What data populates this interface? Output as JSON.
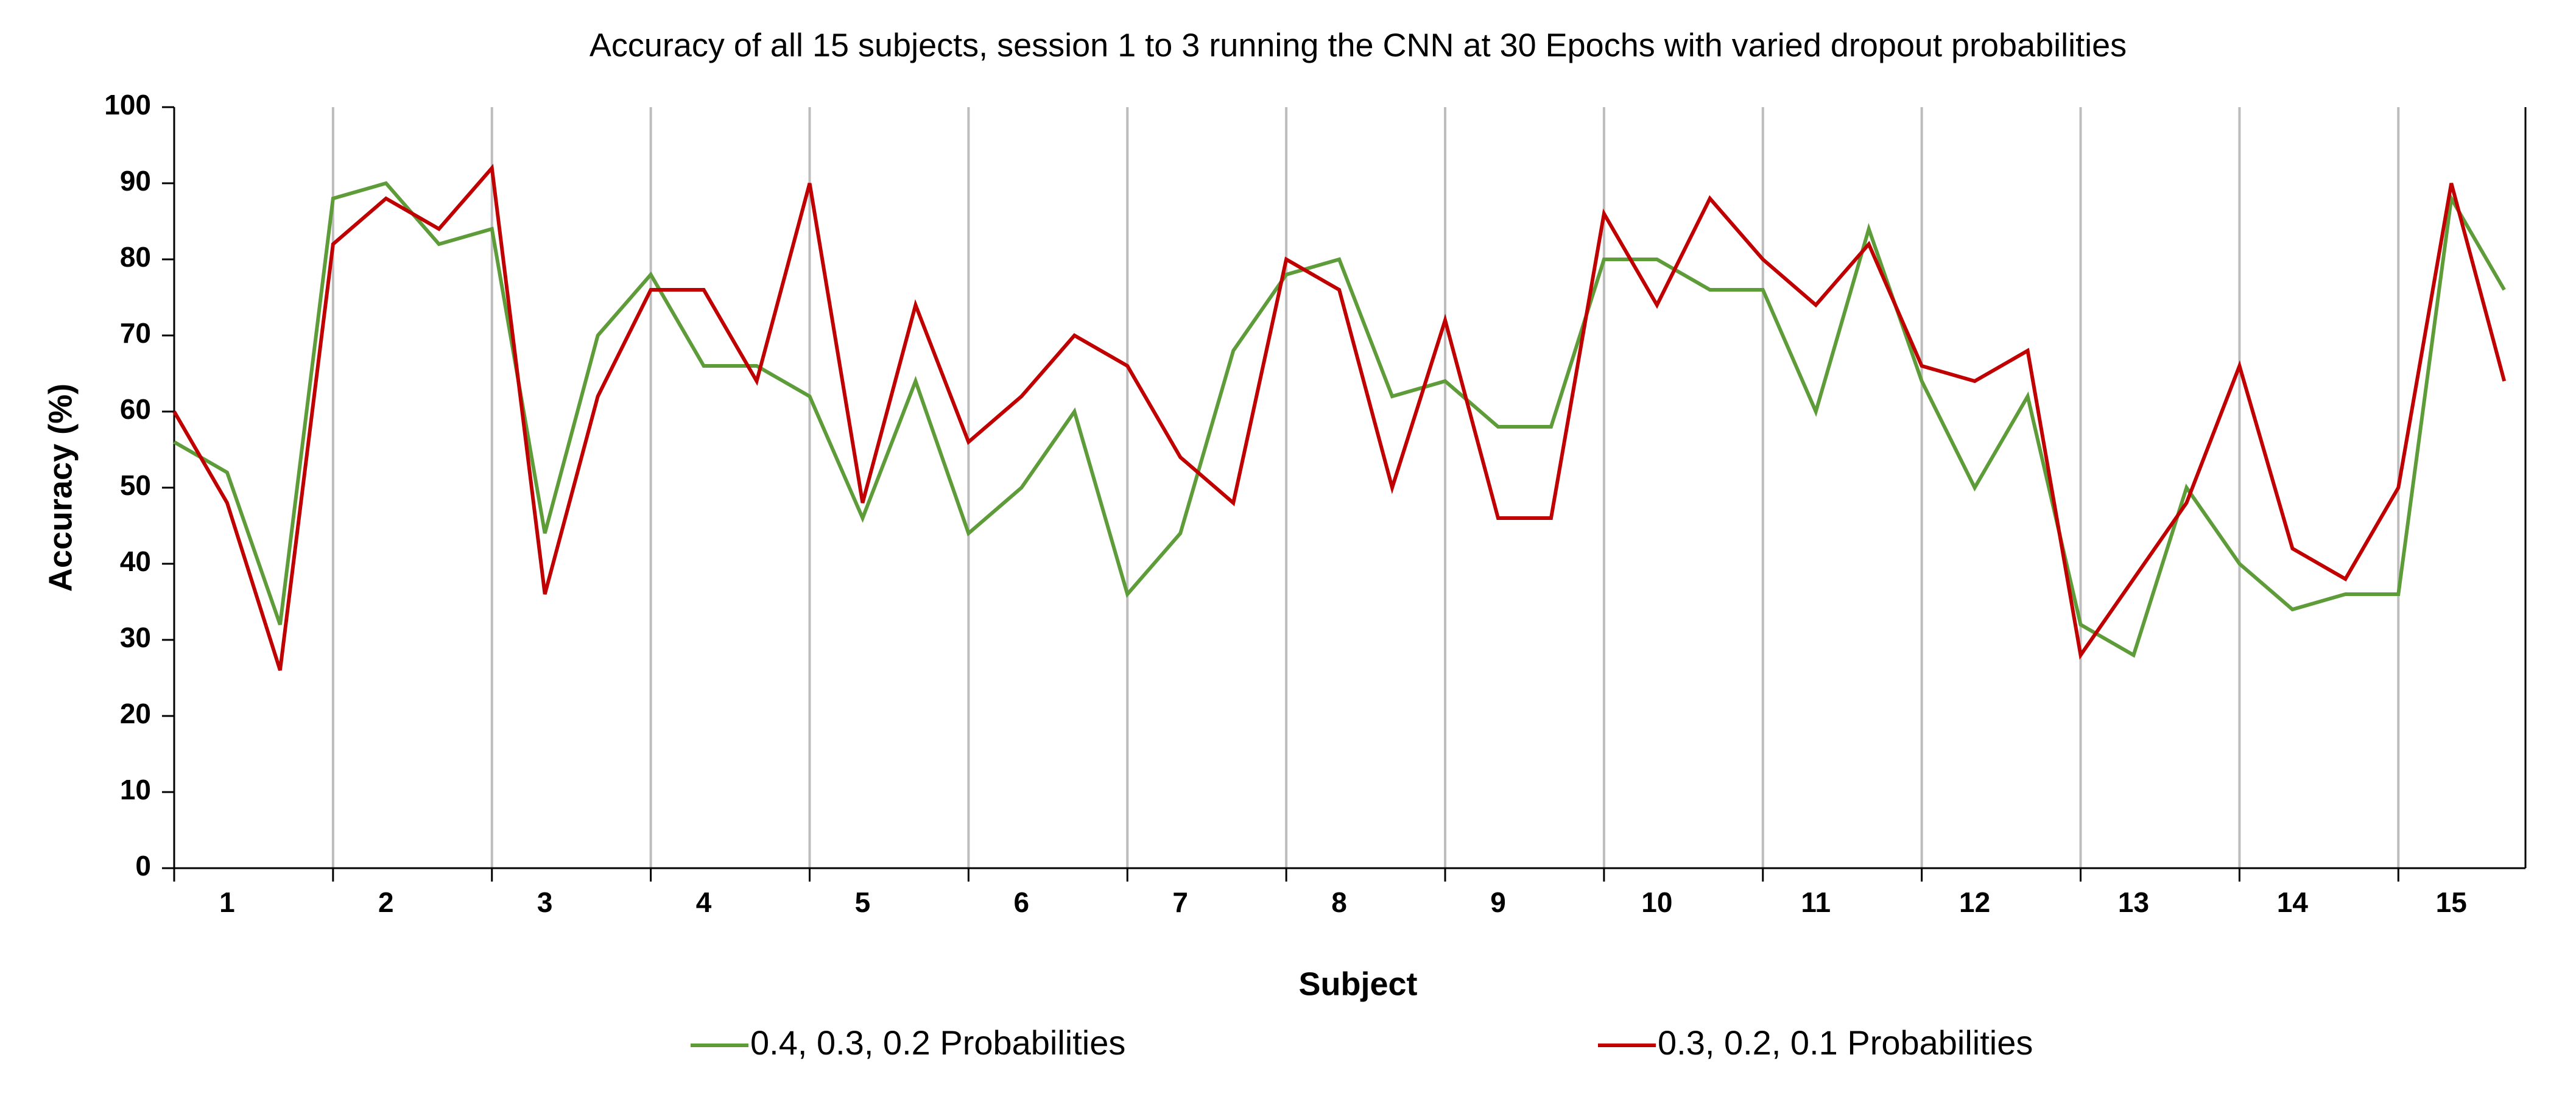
{
  "chart_data": {
    "type": "line",
    "title": "Accuracy of all 15 subjects, session 1 to 3 running the CNN at 30 Epochs with varied dropout probabilities",
    "x_label": "Subject",
    "y_label": "Accuracy (%)",
    "categories": [
      null,
      "1",
      null,
      null,
      "2",
      null,
      null,
      "3",
      null,
      null,
      "4",
      null,
      null,
      "5",
      null,
      null,
      "6",
      null,
      null,
      "7",
      null,
      null,
      "8",
      null,
      null,
      "9",
      null,
      null,
      "10",
      null,
      null,
      "11",
      null,
      null,
      "12",
      null,
      null,
      "13",
      null,
      null,
      "14",
      null,
      null,
      "15",
      null
    ],
    "series": [
      {
        "name": "0.4, 0.3, 0.2 Probabilities",
        "color": "#5e9c3a",
        "values": [
          56,
          52,
          32,
          88,
          90,
          82,
          84,
          44,
          70,
          78,
          66,
          66,
          62,
          46,
          64,
          44,
          50,
          60,
          36,
          44,
          68,
          78,
          80,
          62,
          64,
          58,
          58,
          80,
          80,
          76,
          76,
          60,
          84,
          64,
          50,
          62,
          32,
          28,
          50,
          40,
          34,
          36,
          36,
          88,
          76
        ]
      },
      {
        "name": "0.3, 0.2, 0.1 Probabilities",
        "color": "#c00000",
        "values": [
          60,
          48,
          26,
          82,
          88,
          84,
          92,
          36,
          62,
          76,
          76,
          64,
          90,
          48,
          74,
          56,
          62,
          70,
          66,
          54,
          48,
          80,
          76,
          50,
          72,
          46,
          46,
          86,
          74,
          88,
          80,
          74,
          82,
          66,
          64,
          68,
          28,
          38,
          48,
          66,
          42,
          38,
          50,
          90,
          64
        ]
      }
    ],
    "ylim": [
      0,
      100
    ],
    "yticks": [
      0,
      10,
      20,
      30,
      40,
      50,
      60,
      70,
      80,
      90,
      100
    ],
    "legend": "bottom"
  }
}
